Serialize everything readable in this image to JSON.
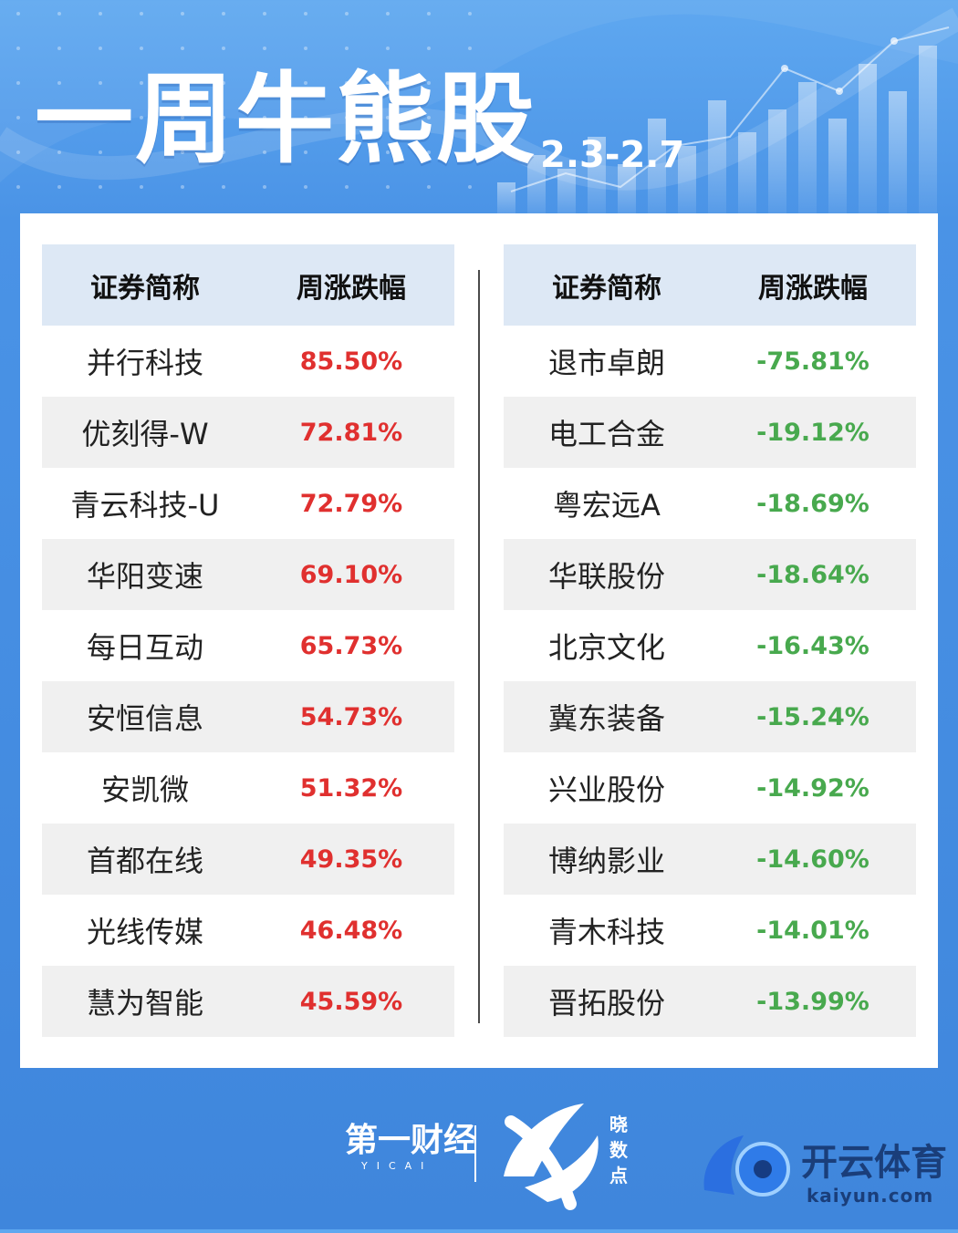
{
  "header": {
    "title": "一周牛熊股",
    "date_range": "2.3-2.7"
  },
  "table": {
    "col_name_label": "证券简称",
    "col_change_label": "周涨跌幅",
    "bulls": [
      {
        "name": "并行科技",
        "change": "85.50%"
      },
      {
        "name": "优刻得-W",
        "change": "72.81%"
      },
      {
        "name": "青云科技-U",
        "change": "72.79%"
      },
      {
        "name": "华阳变速",
        "change": "69.10%"
      },
      {
        "name": "每日互动",
        "change": "65.73%"
      },
      {
        "name": "安恒信息",
        "change": "54.73%"
      },
      {
        "name": "安凯微",
        "change": "51.32%"
      },
      {
        "name": "首都在线",
        "change": "49.35%"
      },
      {
        "name": "光线传媒",
        "change": "46.48%"
      },
      {
        "name": "慧为智能",
        "change": "45.59%"
      }
    ],
    "bears": [
      {
        "name": "退市卓朗",
        "change": "-75.81%"
      },
      {
        "name": "电工合金",
        "change": "-19.12%"
      },
      {
        "name": "粤宏远A",
        "change": "-18.69%"
      },
      {
        "name": "华联股份",
        "change": "-18.64%"
      },
      {
        "name": "北京文化",
        "change": "-16.43%"
      },
      {
        "name": "冀东装备",
        "change": "-15.24%"
      },
      {
        "name": "兴业股份",
        "change": "-14.92%"
      },
      {
        "name": "博纳影业",
        "change": "-14.60%"
      },
      {
        "name": "青木科技",
        "change": "-14.01%"
      },
      {
        "name": "晋拓股份",
        "change": "-13.99%"
      }
    ]
  },
  "footer": {
    "yicai_logo_text": "第一财经",
    "yicai_logo_sub": "YICAI",
    "xiaoshudian_logo_text": "晓数点",
    "kaiyun_logo_text": "开云体育",
    "kaiyun_domain": "kaiyun.com"
  },
  "colors": {
    "background": "#4a93e6",
    "header_row": "#dde8f5",
    "stripe_row": "#f0f0f0",
    "gain": "#e0302f",
    "loss": "#48a94e"
  },
  "icons": [
    "yicai-logo",
    "xiaoshudian-logo",
    "kaiyun-logo"
  ]
}
